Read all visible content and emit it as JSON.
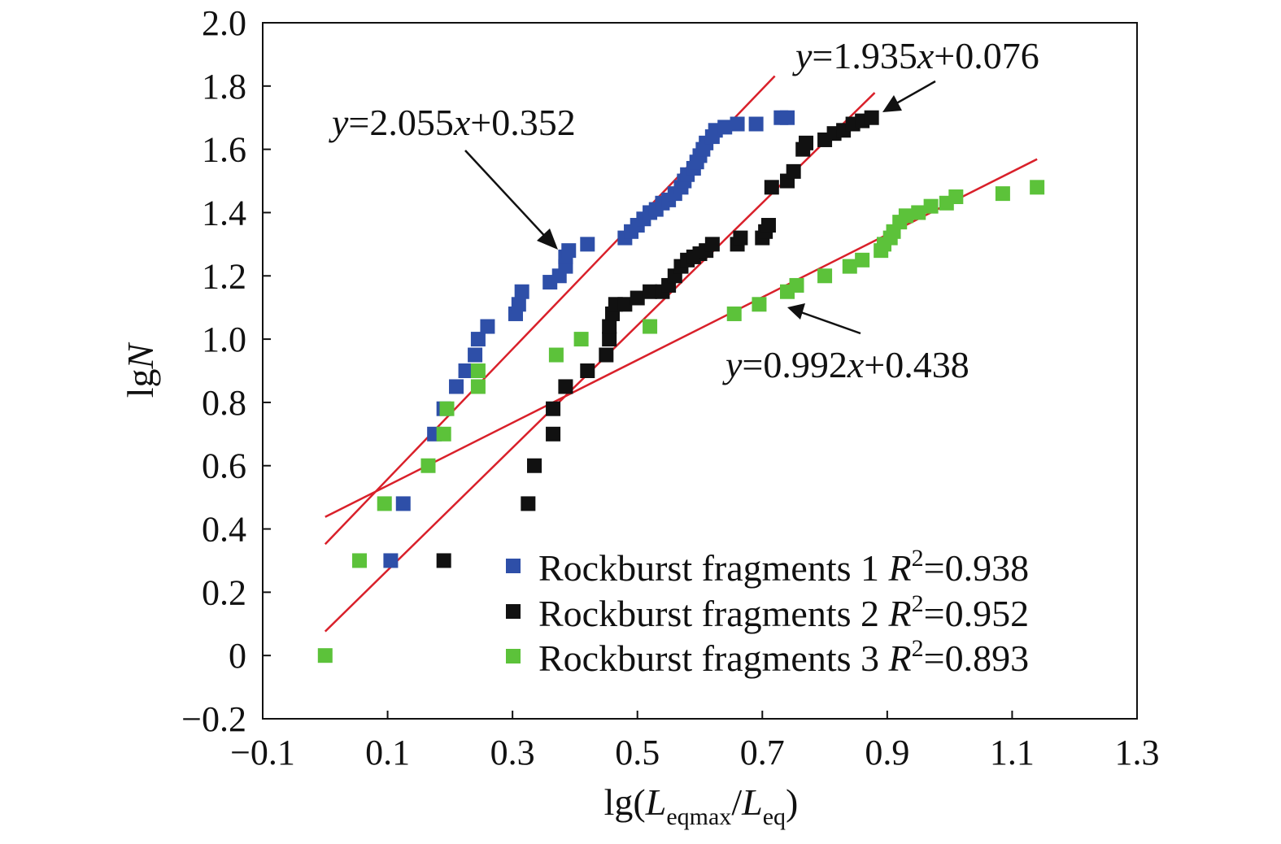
{
  "chart_data": {
    "type": "scatter",
    "xlabel": {
      "prefix": "lg(",
      "L1": "L",
      "sub1": "eqmax",
      "slash": "/",
      "L2": "L",
      "sub2": "eq",
      "suffix": ")"
    },
    "ylabel": {
      "prefix": "lg",
      "N": "N"
    },
    "xlim": [
      -0.1,
      1.3
    ],
    "ylim": [
      -0.2,
      2.0
    ],
    "x_ticks": [
      {
        "value": -0.1,
        "label": "−0.1"
      },
      {
        "value": 0.1,
        "label": "0.1"
      },
      {
        "value": 0.3,
        "label": "0.3"
      },
      {
        "value": 0.5,
        "label": "0.5"
      },
      {
        "value": 0.7,
        "label": "0.7"
      },
      {
        "value": 0.9,
        "label": "0.9"
      },
      {
        "value": 1.1,
        "label": "1.1"
      },
      {
        "value": 1.3,
        "label": "1.3"
      }
    ],
    "y_ticks": [
      {
        "value": -0.2,
        "label": "−0.2"
      },
      {
        "value": 0,
        "label": "0"
      },
      {
        "value": 0.2,
        "label": "0.2"
      },
      {
        "value": 0.4,
        "label": "0.4"
      },
      {
        "value": 0.6,
        "label": "0.6"
      },
      {
        "value": 0.8,
        "label": "0.8"
      },
      {
        "value": 1.0,
        "label": "1.0"
      },
      {
        "value": 1.2,
        "label": "1.2"
      },
      {
        "value": 1.4,
        "label": "1.4"
      },
      {
        "value": 1.6,
        "label": "1.6"
      },
      {
        "value": 1.8,
        "label": "1.8"
      },
      {
        "value": 2.0,
        "label": "2.0"
      }
    ],
    "grid": false,
    "legend_position": "bottom-right",
    "series": [
      {
        "name": "Rockburst fragments 1",
        "r2_label": "R",
        "r2_value": "=0.938",
        "color": "#2e4fa8",
        "fit": {
          "slope": 2.055,
          "intercept": 0.352,
          "x_range": [
            0.0,
            0.72
          ],
          "equation": {
            "y": "y",
            "mid": "=2.055",
            "x": "x",
            "tail": "+0.352"
          }
        },
        "points": [
          [
            0.105,
            0.3
          ],
          [
            0.125,
            0.48
          ],
          [
            0.175,
            0.7
          ],
          [
            0.19,
            0.78
          ],
          [
            0.21,
            0.85
          ],
          [
            0.225,
            0.9
          ],
          [
            0.24,
            0.95
          ],
          [
            0.245,
            1.0
          ],
          [
            0.26,
            1.04
          ],
          [
            0.305,
            1.08
          ],
          [
            0.31,
            1.11
          ],
          [
            0.315,
            1.15
          ],
          [
            0.36,
            1.18
          ],
          [
            0.375,
            1.2
          ],
          [
            0.385,
            1.23
          ],
          [
            0.385,
            1.26
          ],
          [
            0.39,
            1.28
          ],
          [
            0.42,
            1.3
          ],
          [
            0.48,
            1.32
          ],
          [
            0.49,
            1.34
          ],
          [
            0.5,
            1.36
          ],
          [
            0.51,
            1.38
          ],
          [
            0.52,
            1.4
          ],
          [
            0.53,
            1.41
          ],
          [
            0.54,
            1.43
          ],
          [
            0.55,
            1.44
          ],
          [
            0.56,
            1.46
          ],
          [
            0.57,
            1.48
          ],
          [
            0.575,
            1.5
          ],
          [
            0.58,
            1.52
          ],
          [
            0.59,
            1.54
          ],
          [
            0.595,
            1.56
          ],
          [
            0.6,
            1.58
          ],
          [
            0.605,
            1.6
          ],
          [
            0.61,
            1.62
          ],
          [
            0.62,
            1.64
          ],
          [
            0.625,
            1.66
          ],
          [
            0.64,
            1.67
          ],
          [
            0.66,
            1.68
          ],
          [
            0.69,
            1.68
          ],
          [
            0.73,
            1.7
          ],
          [
            0.74,
            1.7
          ]
        ]
      },
      {
        "name": "Rockburst fragments 2",
        "r2_label": "R",
        "r2_value": "=0.952",
        "color": "#111111",
        "fit": {
          "slope": 1.935,
          "intercept": 0.076,
          "x_range": [
            0.0,
            0.88
          ],
          "equation": {
            "y": "y",
            "mid": "=1.935",
            "x": "x",
            "tail": "+0.076"
          }
        },
        "points": [
          [
            0.19,
            0.3
          ],
          [
            0.325,
            0.48
          ],
          [
            0.335,
            0.6
          ],
          [
            0.365,
            0.7
          ],
          [
            0.365,
            0.78
          ],
          [
            0.385,
            0.85
          ],
          [
            0.42,
            0.9
          ],
          [
            0.45,
            0.95
          ],
          [
            0.455,
            1.0
          ],
          [
            0.455,
            1.04
          ],
          [
            0.46,
            1.08
          ],
          [
            0.465,
            1.11
          ],
          [
            0.48,
            1.11
          ],
          [
            0.5,
            1.13
          ],
          [
            0.52,
            1.15
          ],
          [
            0.54,
            1.15
          ],
          [
            0.55,
            1.17
          ],
          [
            0.56,
            1.2
          ],
          [
            0.57,
            1.23
          ],
          [
            0.58,
            1.25
          ],
          [
            0.59,
            1.26
          ],
          [
            0.6,
            1.27
          ],
          [
            0.61,
            1.28
          ],
          [
            0.62,
            1.3
          ],
          [
            0.66,
            1.3
          ],
          [
            0.665,
            1.32
          ],
          [
            0.7,
            1.32
          ],
          [
            0.705,
            1.34
          ],
          [
            0.71,
            1.36
          ],
          [
            0.715,
            1.48
          ],
          [
            0.74,
            1.5
          ],
          [
            0.75,
            1.53
          ],
          [
            0.765,
            1.6
          ],
          [
            0.77,
            1.62
          ],
          [
            0.8,
            1.63
          ],
          [
            0.815,
            1.65
          ],
          [
            0.83,
            1.66
          ],
          [
            0.845,
            1.68
          ],
          [
            0.86,
            1.69
          ],
          [
            0.875,
            1.7
          ]
        ]
      },
      {
        "name": "Rockburst fragments 3",
        "r2_label": "R",
        "r2_value": "=0.893",
        "color": "#5cc23a",
        "fit": {
          "slope": 0.992,
          "intercept": 0.438,
          "x_range": [
            0.0,
            1.14
          ],
          "equation": {
            "y": "y",
            "mid": "=0.992",
            "x": "x",
            "tail": "+0.438"
          }
        },
        "points": [
          [
            0.0,
            0.0
          ],
          [
            0.055,
            0.3
          ],
          [
            0.095,
            0.48
          ],
          [
            0.165,
            0.6
          ],
          [
            0.19,
            0.7
          ],
          [
            0.195,
            0.78
          ],
          [
            0.245,
            0.85
          ],
          [
            0.245,
            0.9
          ],
          [
            0.37,
            0.95
          ],
          [
            0.41,
            1.0
          ],
          [
            0.52,
            1.04
          ],
          [
            0.655,
            1.08
          ],
          [
            0.695,
            1.11
          ],
          [
            0.74,
            1.15
          ],
          [
            0.755,
            1.17
          ],
          [
            0.8,
            1.2
          ],
          [
            0.84,
            1.23
          ],
          [
            0.86,
            1.25
          ],
          [
            0.89,
            1.28
          ],
          [
            0.895,
            1.3
          ],
          [
            0.905,
            1.32
          ],
          [
            0.91,
            1.34
          ],
          [
            0.92,
            1.37
          ],
          [
            0.93,
            1.39
          ],
          [
            0.95,
            1.4
          ],
          [
            0.97,
            1.42
          ],
          [
            0.995,
            1.43
          ],
          [
            1.01,
            1.45
          ],
          [
            1.085,
            1.46
          ],
          [
            1.14,
            1.48
          ]
        ]
      }
    ]
  }
}
